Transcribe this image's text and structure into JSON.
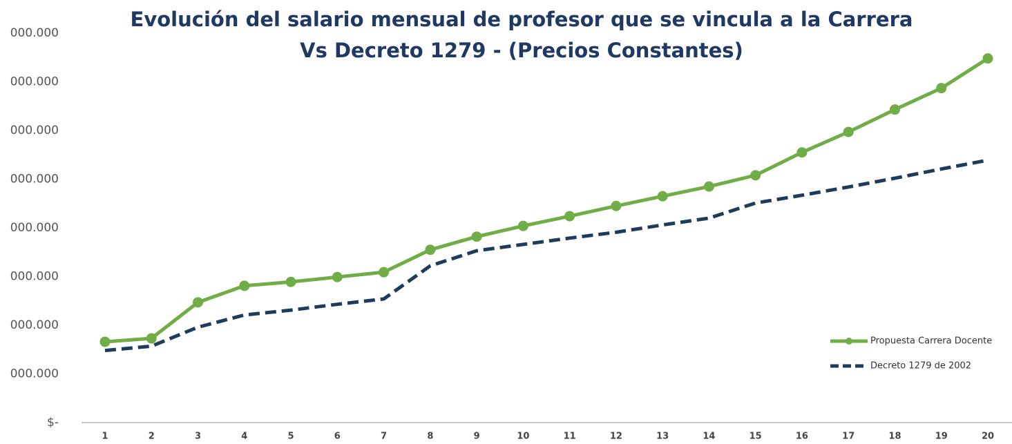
{
  "chart_data": {
    "type": "line",
    "title": [
      "Evolución del salario mensual de profesor que se vincula a la Carrera",
      "Vs Decreto 1279 - (Precios Constantes)"
    ],
    "categories": [
      "1",
      "2",
      "3",
      "4",
      "5",
      "6",
      "7",
      "8",
      "9",
      "10",
      "11",
      "12",
      "13",
      "14",
      "15",
      "16",
      "17",
      "18",
      "19",
      "20"
    ],
    "series": [
      {
        "name": "Propuesta Carrera Docente",
        "color": "#70ad47",
        "dash": false,
        "markers": true,
        "values": [
          1660000,
          1730000,
          2470000,
          2810000,
          2890000,
          2990000,
          3090000,
          3550000,
          3820000,
          4040000,
          4240000,
          4450000,
          4650000,
          4850000,
          5080000,
          5550000,
          5970000,
          6430000,
          6870000,
          7480000
        ]
      },
      {
        "name": "Decreto 1279 de 2002",
        "color": "#1f3b5c",
        "dash": true,
        "markers": false,
        "values": [
          1480000,
          1570000,
          1960000,
          2210000,
          2310000,
          2430000,
          2540000,
          3220000,
          3530000,
          3660000,
          3790000,
          3910000,
          4060000,
          4200000,
          4510000,
          4670000,
          4840000,
          5020000,
          5210000,
          5390000
        ]
      }
    ],
    "ylim": [
      0,
      8000000
    ],
    "yticks": [
      {
        "value": 0,
        "label": "$-"
      },
      {
        "value": 1000000,
        "label": "000.000"
      },
      {
        "value": 2000000,
        "label": "000.000"
      },
      {
        "value": 3000000,
        "label": "000.000"
      },
      {
        "value": 4000000,
        "label": "000.000"
      },
      {
        "value": 5000000,
        "label": "000.000"
      },
      {
        "value": 6000000,
        "label": "000.000"
      },
      {
        "value": 7000000,
        "label": "000.000"
      },
      {
        "value": 8000000,
        "label": "000.000"
      }
    ],
    "grid": false,
    "legend": "lower right"
  }
}
